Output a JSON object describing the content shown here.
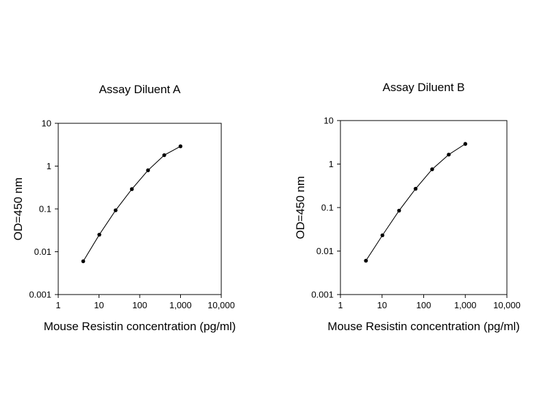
{
  "chart_data": [
    {
      "type": "line",
      "title": "Assay Diluent A",
      "xlabel": "Mouse Resistin concentration (pg/ml)",
      "ylabel": "OD=450 nm",
      "x_scale": "log",
      "y_scale": "log",
      "xlim": [
        1,
        10000
      ],
      "ylim": [
        0.001,
        10
      ],
      "x_ticks": [
        1,
        10,
        100,
        1000,
        10000
      ],
      "x_tick_labels": [
        "1",
        "10",
        "100",
        "1,000",
        "10,000"
      ],
      "y_ticks": [
        0.001,
        0.01,
        0.1,
        1,
        10
      ],
      "y_tick_labels": [
        "0.001",
        "0.01",
        "0.1",
        "1",
        "10"
      ],
      "grid": false,
      "series": [
        {
          "x": [
            4.1,
            10.2,
            25.6,
            64,
            160,
            400,
            1000
          ],
          "y": [
            0.006,
            0.025,
            0.093,
            0.29,
            0.8,
            1.8,
            2.9
          ],
          "color": "#000000",
          "marker": "circle"
        }
      ]
    },
    {
      "type": "line",
      "title": "Assay Diluent B",
      "xlabel": "Mouse Resistin concentration (pg/ml)",
      "ylabel": "OD=450 nm",
      "x_scale": "log",
      "y_scale": "log",
      "xlim": [
        1,
        10000
      ],
      "ylim": [
        0.001,
        10
      ],
      "x_ticks": [
        1,
        10,
        100,
        1000,
        10000
      ],
      "x_tick_labels": [
        "1",
        "10",
        "100",
        "1,000",
        "10,000"
      ],
      "y_ticks": [
        0.001,
        0.01,
        0.1,
        1,
        10
      ],
      "y_tick_labels": [
        "0.001",
        "0.01",
        "0.1",
        "1",
        "10"
      ],
      "grid": false,
      "series": [
        {
          "x": [
            4.1,
            10.2,
            25.6,
            64,
            160,
            400,
            1000
          ],
          "y": [
            0.006,
            0.023,
            0.085,
            0.27,
            0.76,
            1.65,
            2.9
          ],
          "color": "#000000",
          "marker": "circle"
        }
      ]
    }
  ]
}
